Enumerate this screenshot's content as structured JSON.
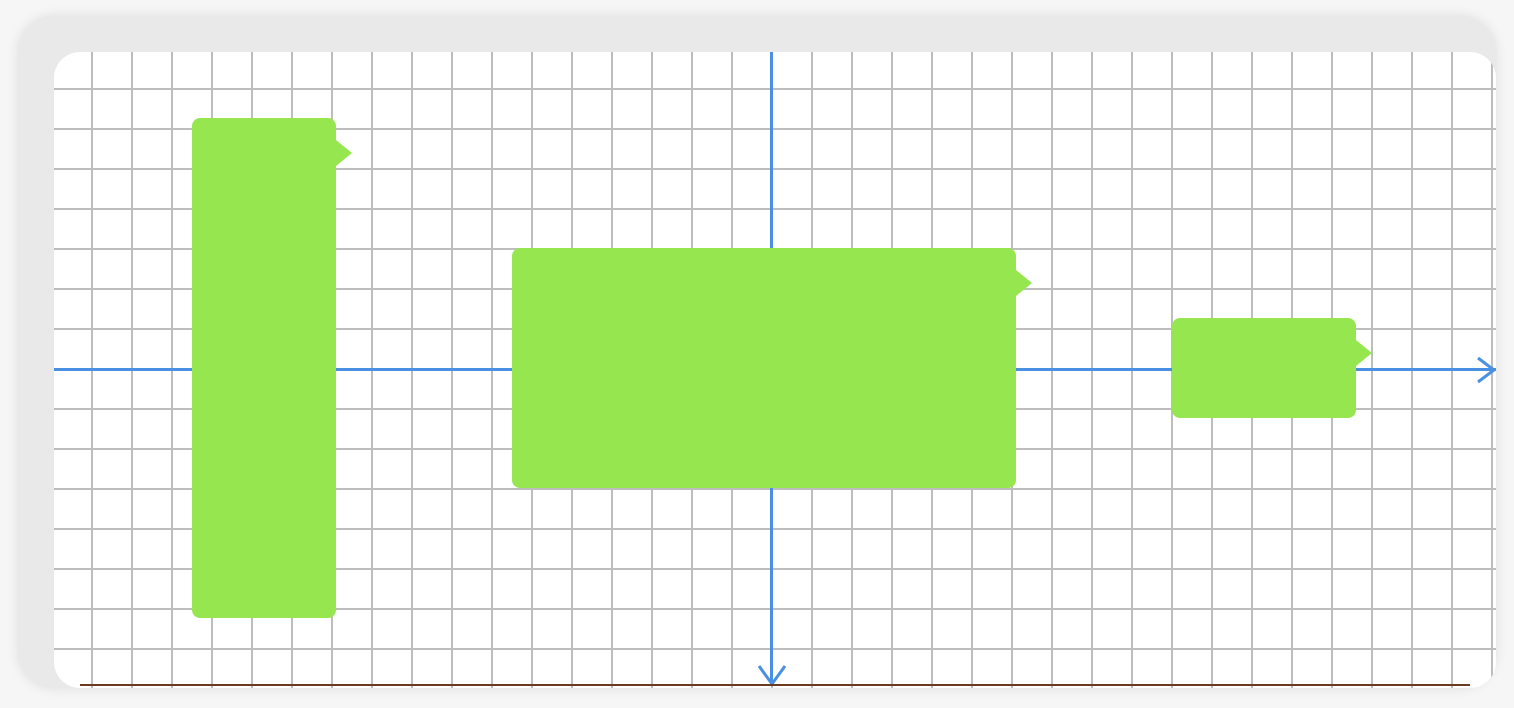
{
  "colors": {
    "axis": "#4a90e2",
    "grid": "#bdbdbd",
    "block": "#96e650",
    "ground": "#6b3a1f",
    "background": "#ffffff"
  },
  "canvas": {
    "axes": [
      "horizontal-axis",
      "vertical-axis"
    ],
    "blocks": [
      "tall-block",
      "wide-block",
      "small-block"
    ]
  }
}
